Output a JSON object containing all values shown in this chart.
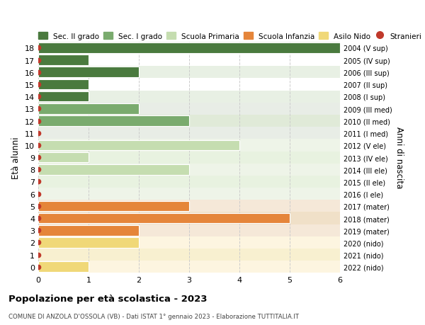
{
  "ages": [
    18,
    17,
    16,
    15,
    14,
    13,
    12,
    11,
    10,
    9,
    8,
    7,
    6,
    5,
    4,
    3,
    2,
    1,
    0
  ],
  "right_labels": [
    "2004 (V sup)",
    "2005 (IV sup)",
    "2006 (III sup)",
    "2007 (II sup)",
    "2008 (I sup)",
    "2009 (III med)",
    "2010 (II med)",
    "2011 (I med)",
    "2012 (V ele)",
    "2013 (IV ele)",
    "2014 (III ele)",
    "2015 (II ele)",
    "2016 (I ele)",
    "2017 (mater)",
    "2018 (mater)",
    "2019 (mater)",
    "2020 (nido)",
    "2021 (nido)",
    "2022 (nido)"
  ],
  "bar_values": [
    6,
    1,
    2,
    1,
    1,
    2,
    3,
    0,
    4,
    1,
    3,
    0,
    0,
    3,
    5,
    2,
    2,
    0,
    1
  ],
  "bar_colors": [
    "#4a7a3e",
    "#4a7a3e",
    "#4a7a3e",
    "#4a7a3e",
    "#4a7a3e",
    "#7aab6e",
    "#7aab6e",
    "#7aab6e",
    "#c5ddb0",
    "#c5ddb0",
    "#c5ddb0",
    "#c5ddb0",
    "#c5ddb0",
    "#e5853a",
    "#e5853a",
    "#e5853a",
    "#f0d878",
    "#f0d878",
    "#f0d878"
  ],
  "row_bg_colors": [
    "#e8f0e4",
    "#ffffff",
    "#e8f0e4",
    "#ffffff",
    "#e8f0e4",
    "#e8ede6",
    "#e0ead8",
    "#e8ede6",
    "#eef4e8",
    "#e8f2e0",
    "#eef4e8",
    "#e8f2e0",
    "#eef4e8",
    "#f5e8d8",
    "#f0e0c8",
    "#f5e8d8",
    "#fdf5e0",
    "#f8f0d0",
    "#fdf5e0"
  ],
  "stranieri_dots": [
    18,
    17,
    16,
    15,
    14,
    13,
    12,
    11,
    10,
    9,
    8,
    7,
    6,
    5,
    4,
    3,
    2,
    1,
    0
  ],
  "dot_color": "#c0392b",
  "title": "Popolazione per età scolastica - 2023",
  "subtitle": "COMUNE DI ANZOLA D'OSSOLA (VB) - Dati ISTAT 1° gennaio 2023 - Elaborazione TUTTITALIA.IT",
  "ylabel": "Età alunni",
  "right_ylabel": "Anni di nascita",
  "xlim": [
    0,
    6
  ],
  "xticks": [
    0,
    1,
    2,
    3,
    4,
    5,
    6
  ],
  "legend_labels": [
    "Sec. II grado",
    "Sec. I grado",
    "Scuola Primaria",
    "Scuola Infanzia",
    "Asilo Nido",
    "Stranieri"
  ],
  "legend_colors": [
    "#4a7a3e",
    "#7aab6e",
    "#c5ddb0",
    "#e5853a",
    "#f0d878",
    "#c0392b"
  ],
  "bar_height": 0.85,
  "grid_color": "#cccccc",
  "bg_color": "#ffffff",
  "plot_bg_color": "#ffffff"
}
